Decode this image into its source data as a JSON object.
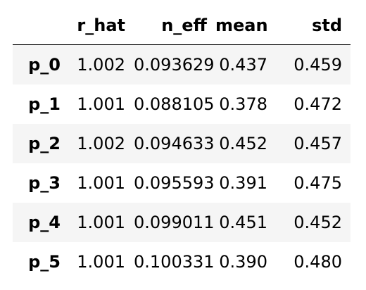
{
  "table": {
    "columns": [
      "r_hat",
      "n_eff",
      "mean",
      "std"
    ],
    "rows": [
      {
        "index": "p_0",
        "r_hat": "1.002",
        "n_eff": "0.093629",
        "mean": "0.437",
        "std": "0.459"
      },
      {
        "index": "p_1",
        "r_hat": "1.001",
        "n_eff": "0.088105",
        "mean": "0.378",
        "std": "0.472"
      },
      {
        "index": "p_2",
        "r_hat": "1.002",
        "n_eff": "0.094633",
        "mean": "0.452",
        "std": "0.457"
      },
      {
        "index": "p_3",
        "r_hat": "1.001",
        "n_eff": "0.095593",
        "mean": "0.391",
        "std": "0.475"
      },
      {
        "index": "p_4",
        "r_hat": "1.001",
        "n_eff": "0.099011",
        "mean": "0.451",
        "std": "0.452"
      },
      {
        "index": "p_5",
        "r_hat": "1.001",
        "n_eff": "0.100331",
        "mean": "0.390",
        "std": "0.480"
      }
    ]
  },
  "colors": {
    "row_stripe": "#f5f5f5",
    "text": "#000000",
    "background": "#ffffff"
  }
}
